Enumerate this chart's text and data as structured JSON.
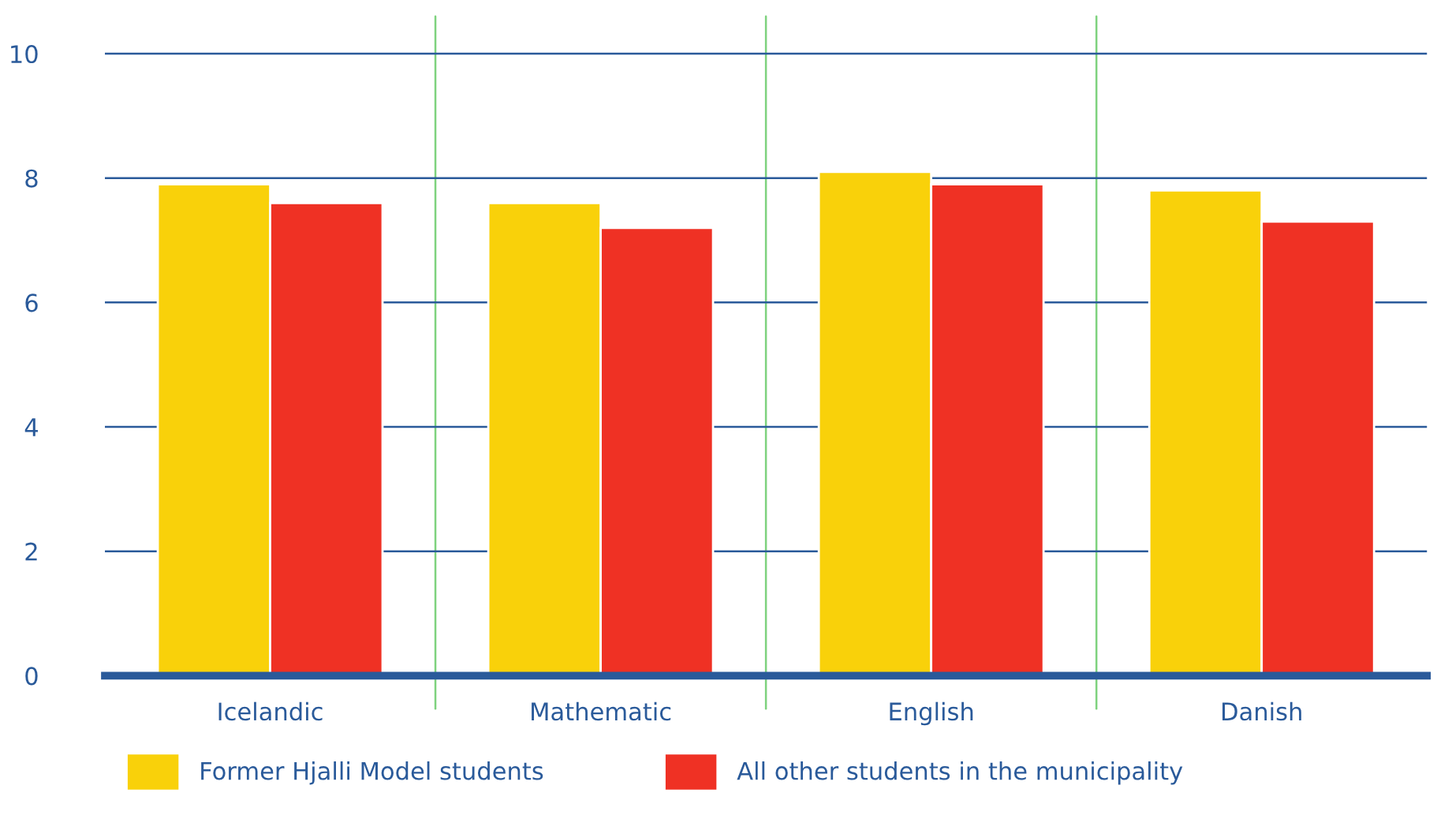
{
  "chart_data": {
    "type": "bar",
    "categories": [
      "Icelandic",
      "Mathematic",
      "English",
      "Danish"
    ],
    "series": [
      {
        "name": "Former Hjalli Model students",
        "color": "#f9d10a",
        "values": [
          7.9,
          7.6,
          8.1,
          7.8
        ]
      },
      {
        "name": "All other students in the municipality",
        "color": "#ef3124",
        "values": [
          7.6,
          7.2,
          7.9,
          7.3
        ]
      }
    ],
    "ylim": [
      0,
      10.6
    ],
    "yticks": [
      0,
      2,
      4,
      6,
      8,
      10
    ],
    "grid": true,
    "legend": "bottom"
  }
}
